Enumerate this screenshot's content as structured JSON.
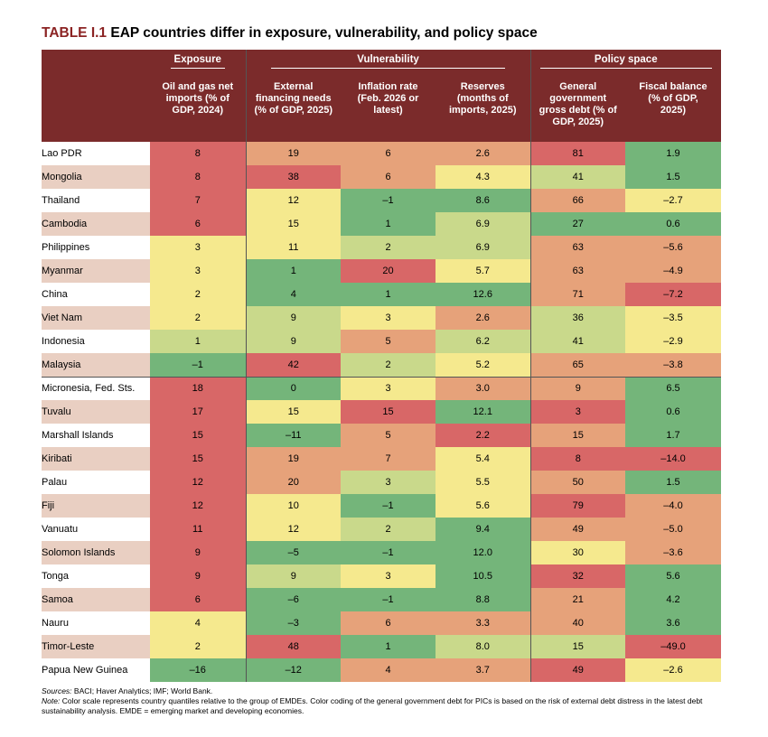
{
  "title": {
    "lead": "TABLE I.1",
    "text": "EAP countries differ in exposure, vulnerability, and policy space"
  },
  "groups": {
    "exposure": "Exposure",
    "vulnerability": "Vulnerability",
    "policy": "Policy space"
  },
  "columns": [
    "Oil and gas net imports (% of GDP, 2024)",
    "External financing needs (% of GDP, 2025)",
    "Inflation rate (Feb. 2026 or latest)",
    "Reserves (months of imports, 2025)",
    "General government gross debt (% of GDP, 2025)",
    "Fiscal balance (% of GDP, 2025)"
  ],
  "colors": {
    "c1": "#d86767",
    "c2": "#e6a27a",
    "c3": "#f5e98e",
    "c4": "#c9d98b",
    "c5": "#74b57a",
    "header": "#7b2b2b"
  },
  "rows": [
    {
      "country": "Lao PDR",
      "values": [
        "8",
        "19",
        "6",
        "2.6",
        "81",
        "1.9"
      ]
    },
    {
      "country": "Mongolia",
      "values": [
        "8",
        "38",
        "6",
        "4.3",
        "41",
        "1.5"
      ]
    },
    {
      "country": "Thailand",
      "values": [
        "7",
        "12",
        "–1",
        "8.6",
        "66",
        "–2.7"
      ]
    },
    {
      "country": "Cambodia",
      "values": [
        "6",
        "15",
        "1",
        "6.9",
        "27",
        "0.6"
      ]
    },
    {
      "country": "Philippines",
      "values": [
        "3",
        "11",
        "2",
        "6.9",
        "63",
        "–5.6"
      ]
    },
    {
      "country": "Myanmar",
      "values": [
        "3",
        "1",
        "20",
        "5.7",
        "63",
        "–4.9"
      ]
    },
    {
      "country": "China",
      "values": [
        "2",
        "4",
        "1",
        "12.6",
        "71",
        "–7.2"
      ]
    },
    {
      "country": "Viet Nam",
      "values": [
        "2",
        "9",
        "3",
        "2.6",
        "36",
        "–3.5"
      ]
    },
    {
      "country": "Indonesia",
      "values": [
        "1",
        "9",
        "5",
        "6.2",
        "41",
        "–2.9"
      ]
    },
    {
      "country": "Malaysia",
      "values": [
        "–1",
        "42",
        "2",
        "5.2",
        "65",
        "–3.8"
      ]
    },
    {
      "country": "Micronesia, Fed. Sts.",
      "values": [
        "18",
        "0",
        "3",
        "3.0",
        "9",
        "6.5"
      ]
    },
    {
      "country": "Tuvalu",
      "values": [
        "17",
        "15",
        "15",
        "12.1",
        "3",
        "0.6"
      ]
    },
    {
      "country": "Marshall Islands",
      "values": [
        "15",
        "–11",
        "5",
        "2.2",
        "15",
        "1.7"
      ]
    },
    {
      "country": "Kiribati",
      "values": [
        "15",
        "19",
        "7",
        "5.4",
        "8",
        "–14.0"
      ]
    },
    {
      "country": "Palau",
      "values": [
        "12",
        "20",
        "3",
        "5.5",
        "50",
        "1.5"
      ]
    },
    {
      "country": "Fiji",
      "values": [
        "12",
        "10",
        "–1",
        "5.6",
        "79",
        "–4.0"
      ]
    },
    {
      "country": "Vanuatu",
      "values": [
        "11",
        "12",
        "2",
        "9.4",
        "49",
        "–5.0"
      ]
    },
    {
      "country": "Solomon Islands",
      "values": [
        "9",
        "–5",
        "–1",
        "12.0",
        "30",
        "–3.6"
      ]
    },
    {
      "country": "Tonga",
      "values": [
        "9",
        "9",
        "3",
        "10.5",
        "32",
        "5.6"
      ]
    },
    {
      "country": "Samoa",
      "values": [
        "6",
        "–6",
        "–1",
        "8.8",
        "21",
        "4.2"
      ]
    },
    {
      "country": "Nauru",
      "values": [
        "4",
        "–3",
        "6",
        "3.3",
        "40",
        "3.6"
      ]
    },
    {
      "country": "Timor-Leste",
      "values": [
        "2",
        "48",
        "1",
        "8.0",
        "15",
        "–49.0"
      ]
    },
    {
      "country": "Papua New Guinea",
      "values": [
        "–16",
        "–12",
        "4",
        "3.7",
        "49",
        "–2.6"
      ]
    }
  ],
  "notes": {
    "sources_label": "Sources:",
    "sources_text": "BACI; Haver Analytics; IMF; World Bank.",
    "note_label": "Note:",
    "note_text": "Color scale represents country quantiles relative to the group of EMDEs. Color coding of the general government debt for PICs is based on the risk of external debt distress in the latest debt sustainability analysis. EMDE = emerging market and developing economies."
  }
}
